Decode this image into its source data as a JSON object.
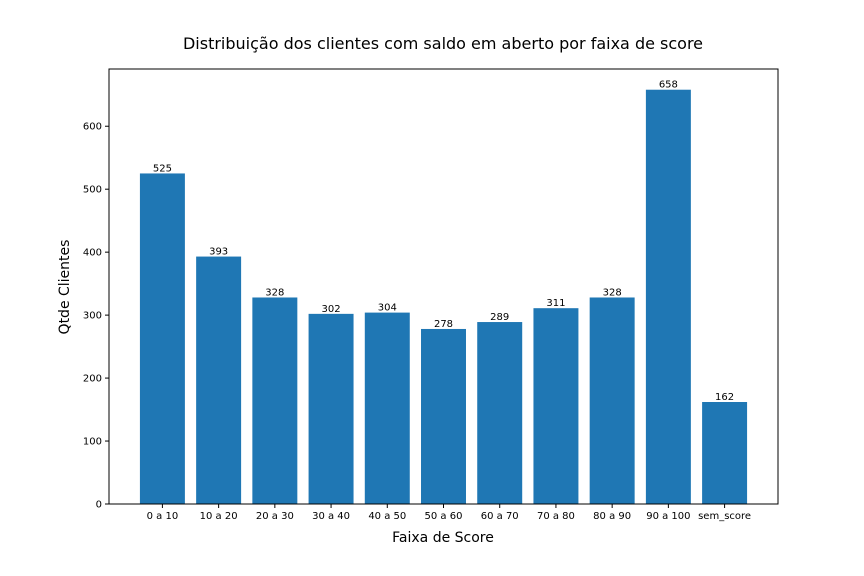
{
  "chart_data": {
    "type": "bar",
    "title": "Distribuição dos clientes com saldo em aberto por faixa de score",
    "xlabel": "Faixa de Score",
    "ylabel": "Qtde Clientes",
    "categories": [
      "0 a 10",
      "10 a 20",
      "20 a 30",
      "30 a 40",
      "40 a 50",
      "50 a 60",
      "60 a 70",
      "70 a 80",
      "80 a 90",
      "90 a 100",
      "sem_score"
    ],
    "values": [
      525,
      393,
      328,
      302,
      304,
      278,
      289,
      311,
      328,
      658,
      162
    ],
    "value_labels": [
      "525",
      "393",
      "328",
      "302",
      "304",
      "278",
      "289",
      "311",
      "328",
      "658",
      "162"
    ],
    "yticks": [
      0,
      100,
      200,
      300,
      400,
      500,
      600
    ],
    "ytick_labels": [
      "0",
      "100",
      "200",
      "300",
      "400",
      "500",
      "600"
    ],
    "ylim": [
      0,
      690.9
    ],
    "grid": false,
    "legend": "none",
    "bar_color": "#1f77b4"
  }
}
